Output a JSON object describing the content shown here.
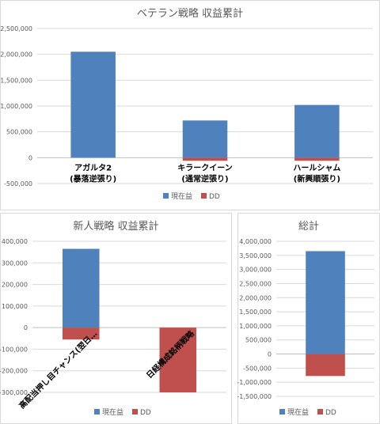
{
  "colors": {
    "current": "#4f81bd",
    "dd": "#c0504d",
    "grid": "#d9d9d9",
    "axis": "#bfbfbf"
  },
  "chart_data": [
    {
      "id": "veteran",
      "type": "bar",
      "stacked": true,
      "title": "ベテラン戦略 収益累計",
      "categories": [
        "アガルタ2\n(暴落逆張り)",
        "キラークイーン\n(通常逆張り)",
        "ハールシャム\n(新興順張り)"
      ],
      "series": [
        {
          "name": "現在益",
          "values": [
            2050000,
            720000,
            1020000
          ]
        },
        {
          "name": "DD",
          "values": [
            0,
            -60000,
            -60000
          ]
        }
      ],
      "ylim": [
        -500000,
        2500000
      ],
      "yticks": [
        -500000,
        0,
        500000,
        1000000,
        1500000,
        2000000,
        2500000
      ],
      "ytick_labels": [
        "-500,000",
        "0",
        "500,000",
        "1,000,000",
        "1,500,000",
        "2,000,000",
        "2,500,000"
      ],
      "legend": "bottom",
      "grid": true
    },
    {
      "id": "newcomer",
      "type": "bar",
      "stacked": true,
      "title": "新人戦略 収益累計",
      "categories": [
        "高配当押し目チャンス(翌日…",
        "日経構成銘柄戦略"
      ],
      "series": [
        {
          "name": "現在益",
          "values": [
            365000,
            0
          ]
        },
        {
          "name": "DD",
          "values": [
            -55000,
            -300000
          ]
        }
      ],
      "ylim": [
        -300000,
        400000
      ],
      "yticks": [
        -300000,
        -200000,
        -100000,
        0,
        100000,
        200000,
        300000,
        400000
      ],
      "ytick_labels": [
        "-300,000",
        "-200,000",
        "-100,000",
        "0",
        "100,000",
        "200,000",
        "300,000",
        "400,000"
      ],
      "legend": "bottom",
      "grid": true
    },
    {
      "id": "total",
      "type": "bar",
      "stacked": true,
      "title": "総計",
      "categories": [
        ""
      ],
      "series": [
        {
          "name": "現在益",
          "values": [
            3650000
          ]
        },
        {
          "name": "DD",
          "values": [
            -780000
          ]
        }
      ],
      "ylim": [
        -1500000,
        4000000
      ],
      "yticks": [
        -1500000,
        -1000000,
        -500000,
        0,
        500000,
        1000000,
        1500000,
        2000000,
        2500000,
        3000000,
        3500000,
        4000000
      ],
      "ytick_labels": [
        "-1,500,000",
        "-1,000,000",
        "-500,000",
        "0",
        "500,000",
        "1,000,000",
        "1,500,000",
        "2,000,000",
        "2,500,000",
        "3,000,000",
        "3,500,000",
        "4,000,000"
      ],
      "legend": "bottom",
      "grid": true
    }
  ]
}
